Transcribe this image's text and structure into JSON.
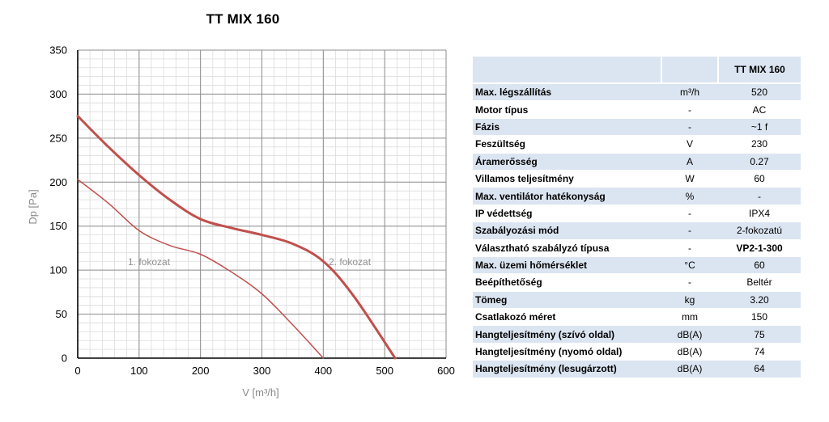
{
  "chart_data": {
    "type": "line",
    "title": "TT MIX 160",
    "xlabel": "V [m³/h]",
    "ylabel": "Dp [Pa]",
    "xlim": [
      0,
      600
    ],
    "ylim": [
      0,
      350
    ],
    "x_ticks": [
      0,
      100,
      200,
      300,
      400,
      500,
      600
    ],
    "y_ticks": [
      0,
      50,
      100,
      150,
      200,
      250,
      300,
      350
    ],
    "grid": true,
    "series": [
      {
        "name": "1. fokozat",
        "color": "#c0504d",
        "x": [
          0,
          50,
          100,
          150,
          200,
          250,
          300,
          350,
          400
        ],
        "y": [
          203,
          176,
          145,
          128,
          118,
          98,
          73,
          38,
          0
        ]
      },
      {
        "name": "2. fokozat",
        "color": "#c0504d",
        "x": [
          0,
          50,
          100,
          150,
          200,
          250,
          300,
          350,
          400,
          450,
          517
        ],
        "y": [
          275,
          240,
          208,
          180,
          158,
          148,
          140,
          130,
          110,
          70,
          0
        ]
      }
    ]
  },
  "table": {
    "header": {
      "label": "",
      "unit": "",
      "value": "TT MIX 160"
    },
    "rows": [
      {
        "label": "Max. légszállítás",
        "unit": "m³/h",
        "value": "520"
      },
      {
        "label": "Motor típus",
        "unit": "-",
        "value": "AC"
      },
      {
        "label": "Fázis",
        "unit": "-",
        "value": "~1 f"
      },
      {
        "label": "Feszültség",
        "unit": "V",
        "value": "230"
      },
      {
        "label": "Áramerősség",
        "unit": "A",
        "value": "0.27"
      },
      {
        "label": "Villamos teljesítmény",
        "unit": "W",
        "value": "60"
      },
      {
        "label": "Max. ventilátor hatékonyság",
        "unit": "%",
        "value": "-"
      },
      {
        "label": "IP védettség",
        "unit": "-",
        "value": "IPX4"
      },
      {
        "label": "Szabályozási mód",
        "unit": "-",
        "value": "2-fokozatú"
      },
      {
        "label": "Választható szabályzó típusa",
        "unit": "-",
        "value": "VP2-1-300"
      },
      {
        "label": "Max. üzemi hőmérséklet",
        "unit": "°C",
        "value": "60"
      },
      {
        "label": "Beépíthetőség",
        "unit": "-",
        "value": "Beltér"
      },
      {
        "label": "Tömeg",
        "unit": "kg",
        "value": "3.20"
      },
      {
        "label": "Csatlakozó méret",
        "unit": "mm",
        "value": "150"
      },
      {
        "label": "Hangteljesítmény (szívó oldal)",
        "unit": "dB(A)",
        "value": "75"
      },
      {
        "label": "Hangteljesítmény (nyomó oldal)",
        "unit": "dB(A)",
        "value": "74"
      },
      {
        "label": "Hangteljesítmény (lesugárzott)",
        "unit": "dB(A)",
        "value": "64"
      }
    ]
  }
}
